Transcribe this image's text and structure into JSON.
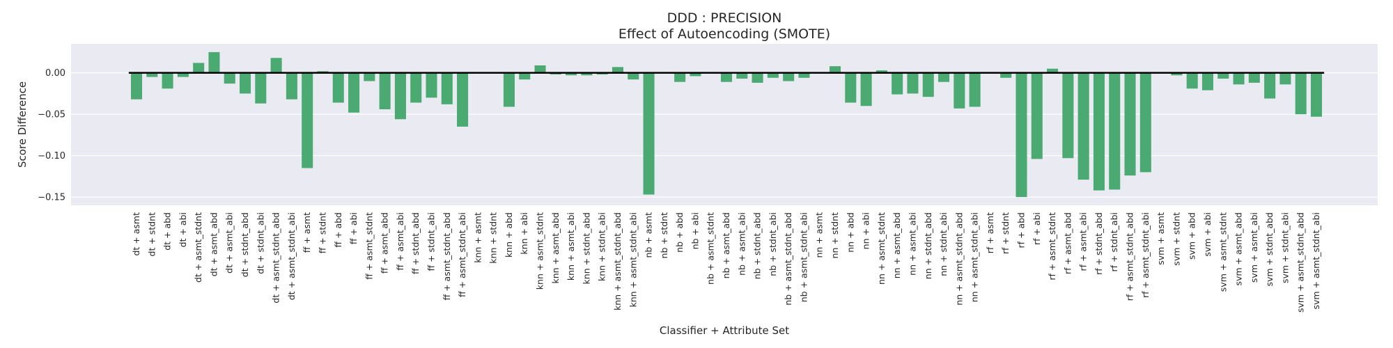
{
  "chart_data": {
    "type": "bar",
    "title": "DDD : PRECISION",
    "subtitle": "Effect of Autoencoding (SMOTE)",
    "xlabel": "Classifier + Attribute Set",
    "ylabel": "Score Difference",
    "ylim": [
      -0.16,
      0.035
    ],
    "yticks": [
      0.0,
      -0.05,
      -0.1,
      -0.15
    ],
    "ytick_labels": [
      "0.00",
      "−0.05",
      "−0.10",
      "−0.15"
    ],
    "grid": true,
    "bar_color": "#4aaa72",
    "background_color": "#eaeaf2",
    "zero_line_color": "#000000",
    "categories": [
      "dt + asmt",
      "dt + stdnt",
      "dt + abd",
      "dt + abi",
      "dt + asmt_stdnt",
      "dt + asmt_abd",
      "dt + asmt_abi",
      "dt + stdnt_abd",
      "dt + stdnt_abi",
      "dt + asmt_stdnt_abd",
      "dt + asmt_stdnt_abi",
      "ff + asmt",
      "ff + stdnt",
      "ff + abd",
      "ff + abi",
      "ff + asmt_stdnt",
      "ff + asmt_abd",
      "ff + asmt_abi",
      "ff + stdnt_abd",
      "ff + stdnt_abi",
      "ff + asmt_stdnt_abd",
      "ff + asmt_stdnt_abi",
      "knn + asmt",
      "knn + stdnt",
      "knn + abd",
      "knn + abi",
      "knn + asmt_stdnt",
      "knn + asmt_abd",
      "knn + asmt_abi",
      "knn + stdnt_abd",
      "knn + stdnt_abi",
      "knn + asmt_stdnt_abd",
      "knn + asmt_stdnt_abi",
      "nb + asmt",
      "nb + stdnt",
      "nb + abd",
      "nb + abi",
      "nb + asmt_stdnt",
      "nb + asmt_abd",
      "nb + asmt_abi",
      "nb + stdnt_abd",
      "nb + stdnt_abi",
      "nb + asmt_stdnt_abd",
      "nb + asmt_stdnt_abi",
      "nn + asmt",
      "nn + stdnt",
      "nn + abd",
      "nn + abi",
      "nn + asmt_stdnt",
      "nn + asmt_abd",
      "nn + asmt_abi",
      "nn + stdnt_abd",
      "nn + stdnt_abi",
      "nn + asmt_stdnt_abd",
      "nn + asmt_stdnt_abi",
      "rf + asmt",
      "rf + stdnt",
      "rf + abd",
      "rf + abi",
      "rf + asmt_stdnt",
      "rf + asmt_abd",
      "rf + asmt_abi",
      "rf + stdnt_abd",
      "rf + stdnt_abi",
      "rf + asmt_stdnt_abd",
      "rf + asmt_stdnt_abi",
      "svm + asmt",
      "svm + stdnt",
      "svm + abd",
      "svm + abi",
      "svm + asmt_stdnt",
      "svm + asmt_abd",
      "svm + asmt_abi",
      "svm + stdnt_abd",
      "svm + stdnt_abi",
      "svm + asmt_stdnt_abd",
      "svm + asmt_stdnt_abi"
    ],
    "values": [
      -0.032,
      -0.005,
      -0.019,
      -0.005,
      0.012,
      0.025,
      -0.013,
      -0.025,
      -0.037,
      0.018,
      -0.032,
      -0.115,
      0.002,
      -0.036,
      -0.048,
      -0.01,
      -0.044,
      -0.056,
      -0.036,
      -0.03,
      -0.038,
      -0.065,
      0.0,
      0.0,
      -0.041,
      -0.008,
      0.009,
      -0.002,
      -0.003,
      -0.003,
      -0.002,
      0.007,
      -0.008,
      -0.147,
      0.0,
      -0.011,
      -0.004,
      0.0,
      -0.011,
      -0.007,
      -0.012,
      -0.006,
      -0.01,
      -0.006,
      0.0,
      0.008,
      -0.036,
      -0.04,
      0.003,
      -0.026,
      -0.025,
      -0.029,
      -0.011,
      -0.043,
      -0.041,
      0.0,
      -0.006,
      -0.15,
      -0.104,
      0.005,
      -0.103,
      -0.129,
      -0.142,
      -0.141,
      -0.124,
      -0.12,
      0.0,
      -0.003,
      -0.019,
      -0.021,
      -0.007,
      -0.014,
      -0.012,
      -0.031,
      -0.014,
      -0.05,
      -0.053
    ]
  }
}
